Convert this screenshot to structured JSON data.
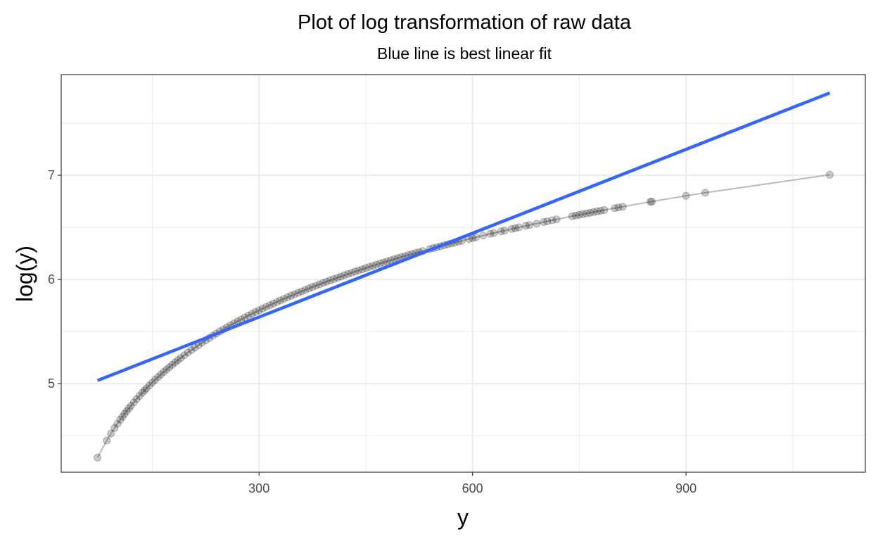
{
  "chart_data": {
    "type": "scatter",
    "title": "Plot of log transformation of raw data",
    "subtitle": "Blue line is best linear fit",
    "xlabel": "y",
    "ylabel": "log(y)",
    "xlim": [
      22,
      1152
    ],
    "ylim": [
      4.15,
      7.966
    ],
    "x_ticks": [
      300,
      600,
      900
    ],
    "x_tick_labels": [
      "300",
      "600",
      "900"
    ],
    "y_ticks": [
      5,
      6,
      7
    ],
    "y_tick_labels": [
      "5",
      "6",
      "7"
    ],
    "grid": true,
    "point_y_transform": "natural log of x",
    "points_x": [
      73,
      86,
      92,
      97,
      101,
      105,
      108,
      111,
      114,
      117,
      120,
      124,
      128,
      132,
      136,
      139,
      142,
      146,
      150,
      154,
      158,
      162,
      166,
      170,
      174,
      178,
      182,
      186,
      190,
      195,
      200,
      205,
      210,
      215,
      220,
      225,
      230,
      235,
      240,
      245,
      250,
      255,
      260,
      265,
      270,
      275,
      280,
      285,
      290,
      295,
      300,
      305,
      310,
      315,
      320,
      325,
      330,
      335,
      340,
      345,
      350,
      355,
      360,
      365,
      370,
      375,
      380,
      385,
      390,
      395,
      400,
      405,
      410,
      415,
      420,
      425,
      430,
      435,
      440,
      445,
      450,
      455,
      460,
      465,
      470,
      475,
      480,
      485,
      490,
      495,
      500,
      505,
      510,
      515,
      520,
      525,
      530,
      540,
      545,
      550,
      555,
      560,
      565,
      570,
      575,
      580,
      585,
      595,
      600,
      605,
      615,
      625,
      630,
      640,
      645,
      655,
      660,
      665,
      675,
      680,
      690,
      700,
      705,
      712,
      718,
      740,
      745,
      750,
      755,
      760,
      765,
      770,
      775,
      780,
      785,
      800,
      805,
      811,
      850,
      852,
      900,
      927,
      1102
    ],
    "fit_line": {
      "color": "#3366FF",
      "x": [
        73,
        1102
      ],
      "y": [
        5.03,
        7.79
      ]
    },
    "colors": {
      "points": "#000000",
      "connector": "#bbbbbb",
      "grid": "#ebebeb",
      "panel_border": "#333333"
    }
  }
}
